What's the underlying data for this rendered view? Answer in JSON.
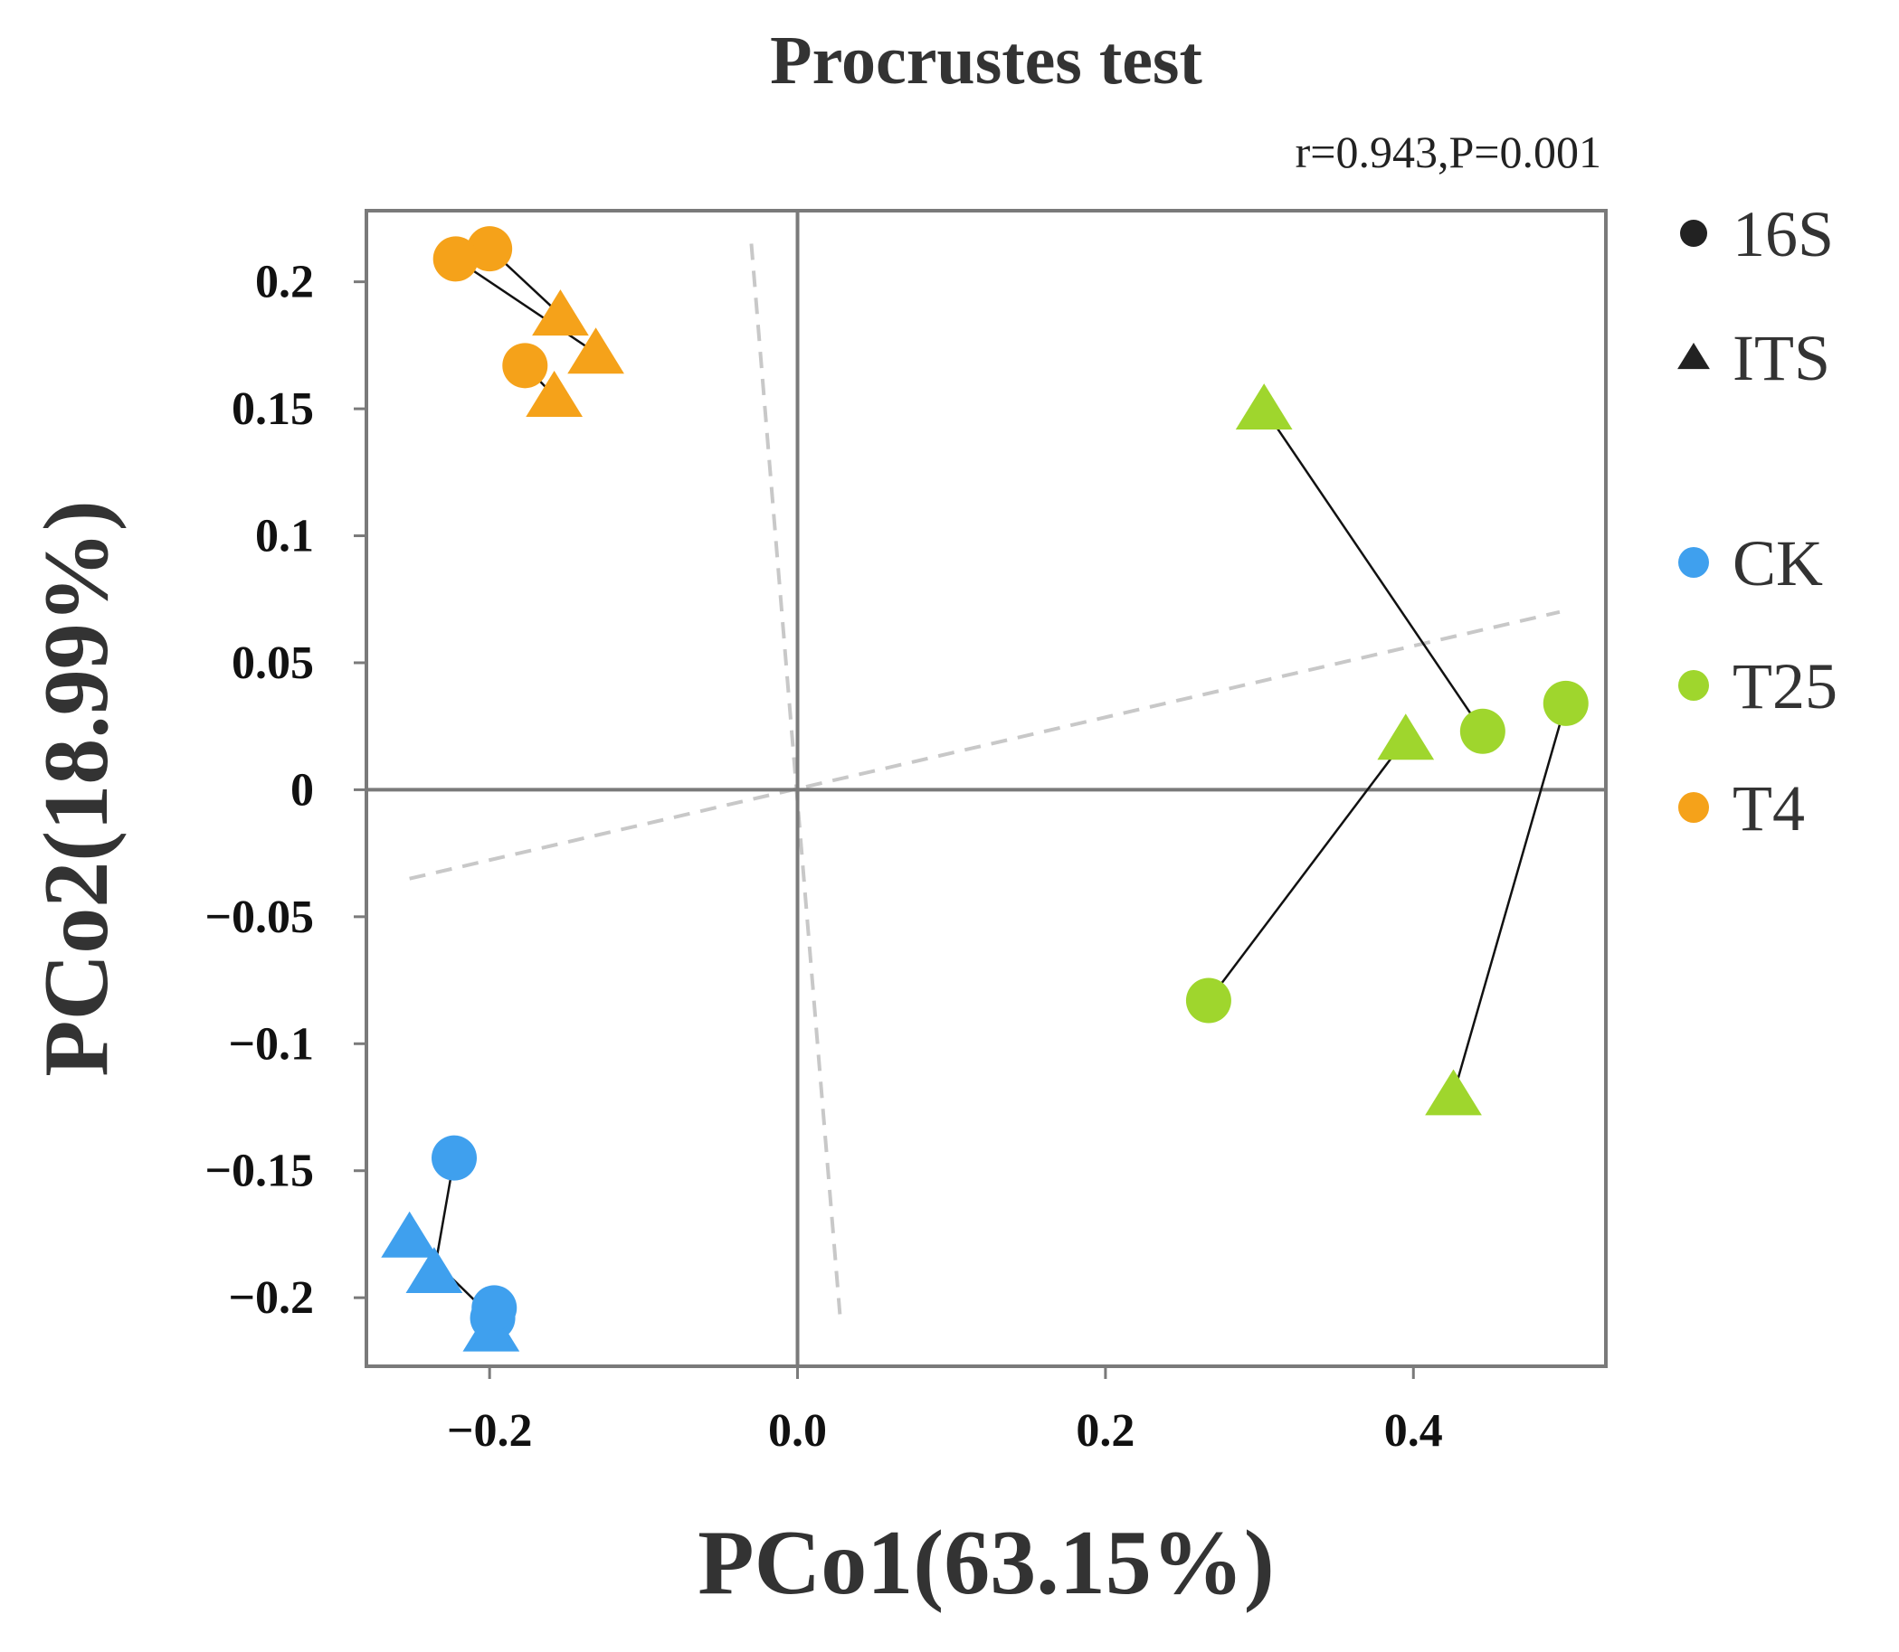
{
  "chart_data": {
    "type": "scatter",
    "title": "Procrustes test",
    "subtitle": "r=0.943,P=0.001",
    "xlabel": "PCo1(63.15%)",
    "ylabel": "PCo2(18.99%)",
    "xlim": [
      -0.28,
      0.525
    ],
    "ylim": [
      -0.227,
      0.228
    ],
    "xticks": [
      -0.2,
      0.0,
      0.2,
      0.4
    ],
    "xtick_labels": [
      "−0.2",
      "0.0",
      "0.2",
      "0.4"
    ],
    "yticks": [
      0.2,
      0.15,
      0.1,
      0.05,
      0,
      -0.05,
      -0.1,
      -0.15,
      -0.2
    ],
    "ytick_labels": [
      "0.2",
      "0.15",
      "0.1",
      "0.05",
      "0",
      "−0.05",
      "−0.1",
      "−0.15",
      "−0.2"
    ],
    "grid": false,
    "legend_position": "right",
    "colors": {
      "CK": "#3fa0ee",
      "T25": "#9fd62d",
      "T4": "#f5a21a",
      "axis": "#7a7a7a",
      "link": "#111111",
      "rotation": "#c8c8c8"
    },
    "legend": {
      "shapes": [
        {
          "label": "16S",
          "marker": "circle"
        },
        {
          "label": "ITS",
          "marker": "triangle"
        }
      ],
      "groups": [
        {
          "label": "CK",
          "color": "#3fa0ee"
        },
        {
          "label": "T25",
          "color": "#9fd62d"
        },
        {
          "label": "T4",
          "color": "#f5a21a"
        }
      ]
    },
    "rotation_lines": [
      {
        "x1": -0.252,
        "y1": -0.035,
        "x2": 0.495,
        "y2": 0.07
      },
      {
        "x1": -0.03,
        "y1": 0.215,
        "x2": 0.028,
        "y2": -0.21
      }
    ],
    "pairs": [
      {
        "group": "CK",
        "s16": [
          -0.223,
          -0.145
        ],
        "its": [
          -0.236,
          -0.19
        ]
      },
      {
        "group": "CK",
        "s16": [
          -0.198,
          -0.208
        ],
        "its": [
          -0.252,
          -0.176
        ]
      },
      {
        "group": "CK",
        "s16": [
          -0.197,
          -0.204
        ],
        "its": [
          -0.199,
          -0.213
        ]
      },
      {
        "group": "T25",
        "s16": [
          0.445,
          0.023
        ],
        "its": [
          0.303,
          0.15
        ]
      },
      {
        "group": "T25",
        "s16": [
          0.499,
          0.034
        ],
        "its": [
          0.426,
          -0.12
        ]
      },
      {
        "group": "T25",
        "s16": [
          0.267,
          -0.083
        ],
        "its": [
          0.395,
          0.02
        ]
      },
      {
        "group": "T4",
        "s16": [
          -0.2,
          0.213
        ],
        "its": [
          -0.154,
          0.187
        ]
      },
      {
        "group": "T4",
        "s16": [
          -0.222,
          0.209
        ],
        "its": [
          -0.131,
          0.172
        ]
      },
      {
        "group": "T4",
        "s16": [
          -0.177,
          0.167
        ],
        "its": [
          -0.158,
          0.155
        ]
      }
    ]
  }
}
